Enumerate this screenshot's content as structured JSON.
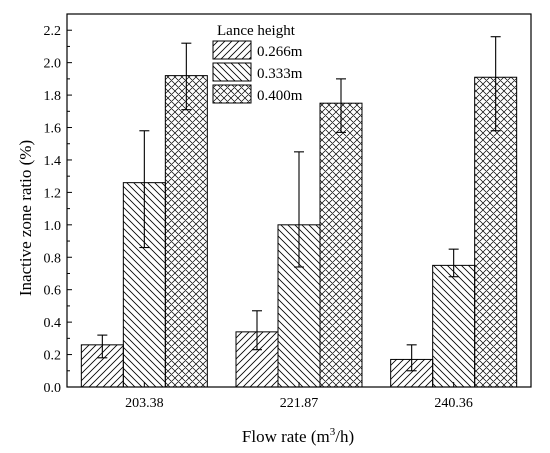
{
  "chart_data": {
    "type": "bar",
    "xlabel": "Flow rate (m³/h)",
    "xlabel_main": "Flow rate (m",
    "xlabel_sup": "3",
    "xlabel_end": "/h)",
    "ylabel": "Inactive zone ratio (%)",
    "categories": [
      "203.38",
      "221.87",
      "240.36"
    ],
    "ylim": [
      0.0,
      2.3
    ],
    "yticks": [
      "0.0",
      "0.2",
      "0.4",
      "0.6",
      "0.8",
      "1.0",
      "1.2",
      "1.4",
      "1.6",
      "1.8",
      "2.0",
      "2.2"
    ],
    "legend_title": "Lance height",
    "legend_position": "top-center",
    "grid": false,
    "series": [
      {
        "name": "0.266m",
        "pattern": "diagonal-forward",
        "values": [
          0.26,
          0.34,
          0.17
        ],
        "err_low": [
          0.18,
          0.23,
          0.1
        ],
        "err_high": [
          0.32,
          0.47,
          0.26
        ]
      },
      {
        "name": "0.333m",
        "pattern": "diagonal-backward",
        "values": [
          1.26,
          1.0,
          0.75
        ],
        "err_low": [
          0.86,
          0.74,
          0.68
        ],
        "err_high": [
          1.58,
          1.45,
          0.85
        ]
      },
      {
        "name": "0.400m",
        "pattern": "crosshatch",
        "values": [
          1.92,
          1.75,
          1.91
        ],
        "err_low": [
          1.71,
          1.57,
          1.58
        ],
        "err_high": [
          2.12,
          1.9,
          2.16
        ]
      }
    ]
  }
}
